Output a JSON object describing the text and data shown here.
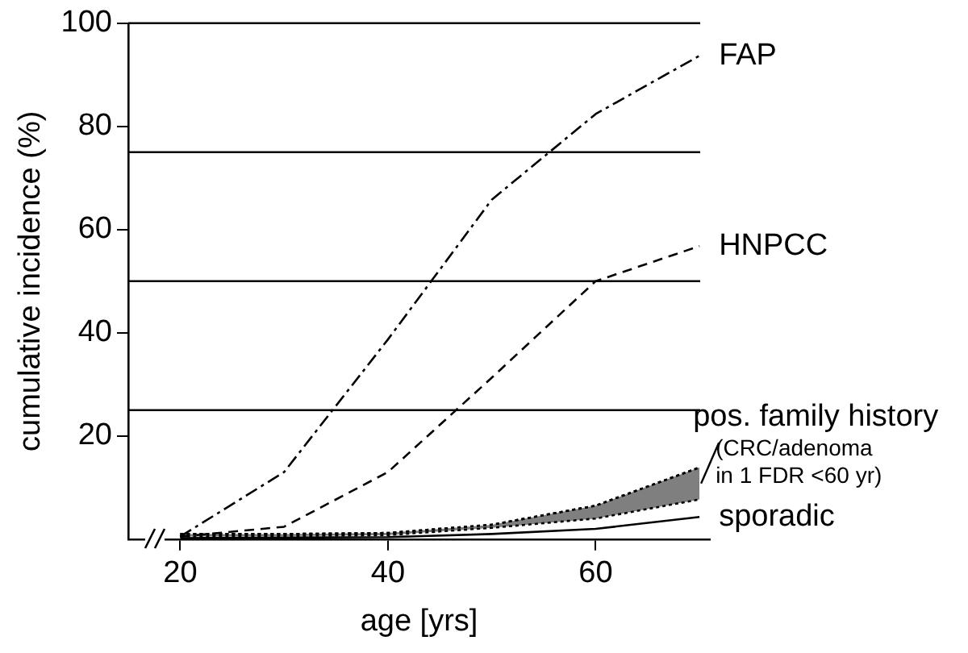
{
  "chart_data": {
    "type": "line",
    "xlabel": "age [yrs]",
    "ylabel": "cumulative incidence (%)",
    "x": [
      20,
      30,
      40,
      50,
      60,
      70
    ],
    "xlim": [
      15,
      71
    ],
    "xticks": [
      20,
      40,
      60
    ],
    "ylim": [
      0,
      100
    ],
    "yticks": [
      20,
      40,
      60,
      80,
      100
    ],
    "series": [
      {
        "name": "FAP",
        "color": "#000000",
        "line_style": "dashdot",
        "values": [
          0.5,
          13,
          38.7,
          65.8,
          82.4,
          93.7
        ]
      },
      {
        "name": "HNPCC",
        "color": "#000000",
        "line_style": "dashed",
        "values": [
          0.5,
          2.4,
          13,
          31.3,
          50,
          56.8
        ]
      },
      {
        "name": "pos. family history",
        "color": "#000000",
        "line_style": "dotted",
        "values": [
          1,
          1,
          1.2,
          2.8,
          6.5,
          13.9
        ],
        "lower": [
          0.5,
          0.6,
          0.8,
          2.2,
          4,
          7.7
        ],
        "upper": [
          1,
          1,
          1.2,
          2.8,
          6.5,
          13.9
        ]
      },
      {
        "name": "sporadic",
        "color": "#000000",
        "line_style": "solid",
        "values": [
          0.2,
          0.3,
          0.4,
          1,
          2,
          4.3
        ]
      }
    ],
    "ref_lines": [
      {
        "axis": "y",
        "value": 25
      },
      {
        "axis": "y",
        "value": 50
      },
      {
        "axis": "y",
        "value": 75
      },
      {
        "axis": "y",
        "value": 100
      }
    ],
    "annotations": [
      {
        "text": "(CRC/adenoma in 1 FDR <60 yr)",
        "x": 70,
        "y": 10.8
      }
    ],
    "legend": false
  }
}
